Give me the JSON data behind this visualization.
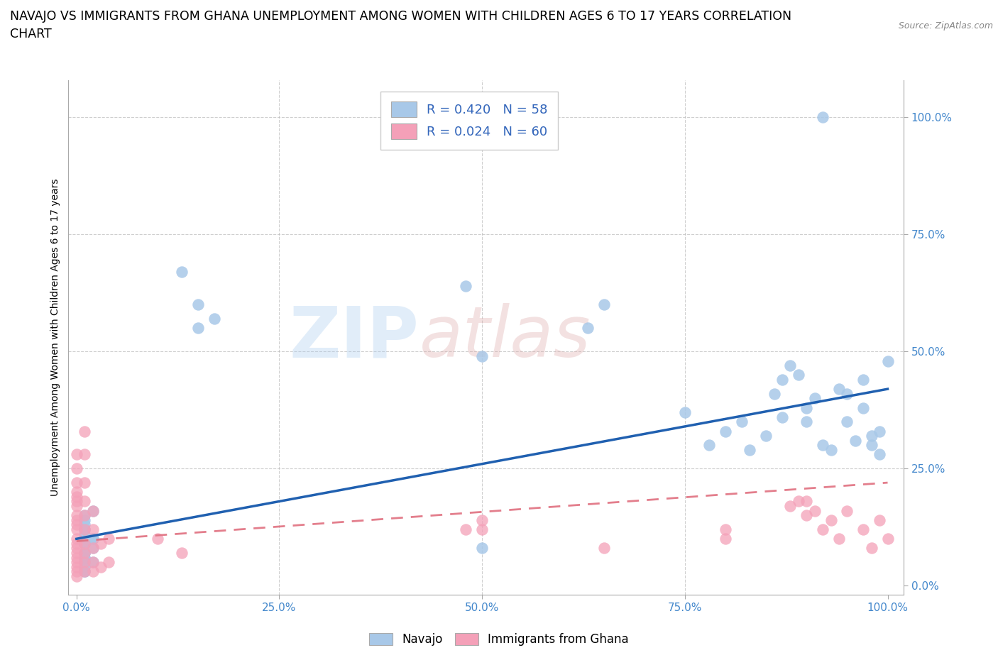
{
  "title_line1": "NAVAJO VS IMMIGRANTS FROM GHANA UNEMPLOYMENT AMONG WOMEN WITH CHILDREN AGES 6 TO 17 YEARS CORRELATION",
  "title_line2": "CHART",
  "source": "Source: ZipAtlas.com",
  "ylabel": "Unemployment Among Women with Children Ages 6 to 17 years",
  "label_navajo": "Navajo",
  "label_ghana": "Immigrants from Ghana",
  "navajo_R": 0.42,
  "navajo_N": 58,
  "ghana_R": 0.024,
  "ghana_N": 60,
  "navajo_color": "#a8c8e8",
  "ghana_color": "#f4a0b8",
  "navajo_line_color": "#2060b0",
  "ghana_line_color": "#e07080",
  "background_color": "#ffffff",
  "grid_color": "#bbbbbb",
  "xticks": [
    0.0,
    0.25,
    0.5,
    0.75,
    1.0
  ],
  "yticks": [
    0.0,
    0.25,
    0.5,
    0.75,
    1.0
  ],
  "xticklabels": [
    "0.0%",
    "25.0%",
    "50.0%",
    "75.0%",
    "100.0%"
  ],
  "yticklabels": [
    "0.0%",
    "25.0%",
    "50.0%",
    "75.0%",
    "100.0%"
  ],
  "navajo_x": [
    0.01,
    0.01,
    0.01,
    0.01,
    0.02,
    0.01,
    0.02,
    0.01,
    0.01,
    0.02,
    0.01,
    0.02,
    0.01,
    0.01,
    0.01,
    0.02,
    0.01,
    0.01,
    0.01,
    0.13,
    0.17,
    0.48,
    0.5,
    0.63,
    0.65,
    0.75,
    0.78,
    0.8,
    0.82,
    0.83,
    0.85,
    0.86,
    0.87,
    0.87,
    0.88,
    0.89,
    0.9,
    0.9,
    0.91,
    0.92,
    0.93,
    0.94,
    0.95,
    0.95,
    0.96,
    0.97,
    0.97,
    0.98,
    0.98,
    0.99,
    0.99,
    1.0,
    0.92,
    0.5,
    0.15,
    0.15,
    0.01,
    0.01
  ],
  "navajo_y": [
    0.07,
    0.12,
    0.09,
    0.15,
    0.1,
    0.06,
    0.08,
    0.04,
    0.03,
    0.05,
    0.13,
    0.16,
    0.11,
    0.07,
    0.14,
    0.1,
    0.09,
    0.12,
    0.06,
    0.67,
    0.57,
    0.64,
    0.49,
    0.55,
    0.6,
    0.37,
    0.3,
    0.33,
    0.35,
    0.29,
    0.32,
    0.41,
    0.36,
    0.44,
    0.47,
    0.45,
    0.35,
    0.38,
    0.4,
    0.3,
    0.29,
    0.42,
    0.41,
    0.35,
    0.31,
    0.38,
    0.44,
    0.3,
    0.32,
    0.28,
    0.33,
    0.48,
    1.0,
    0.08,
    0.6,
    0.55,
    0.05,
    0.03
  ],
  "ghana_x": [
    0.0,
    0.0,
    0.0,
    0.0,
    0.0,
    0.0,
    0.0,
    0.0,
    0.0,
    0.0,
    0.0,
    0.0,
    0.0,
    0.0,
    0.0,
    0.0,
    0.0,
    0.0,
    0.0,
    0.0,
    0.01,
    0.01,
    0.01,
    0.01,
    0.01,
    0.01,
    0.01,
    0.01,
    0.01,
    0.01,
    0.02,
    0.02,
    0.02,
    0.02,
    0.02,
    0.03,
    0.03,
    0.04,
    0.04,
    0.1,
    0.13,
    0.48,
    0.5,
    0.5,
    0.65,
    0.8,
    0.8,
    0.88,
    0.89,
    0.9,
    0.9,
    0.91,
    0.92,
    0.93,
    0.94,
    0.95,
    0.97,
    0.98,
    0.99,
    1.0
  ],
  "ghana_y": [
    0.02,
    0.03,
    0.04,
    0.05,
    0.06,
    0.07,
    0.08,
    0.09,
    0.1,
    0.12,
    0.13,
    0.14,
    0.15,
    0.17,
    0.18,
    0.19,
    0.2,
    0.22,
    0.25,
    0.28,
    0.03,
    0.05,
    0.07,
    0.09,
    0.12,
    0.15,
    0.18,
    0.22,
    0.28,
    0.33,
    0.03,
    0.05,
    0.08,
    0.12,
    0.16,
    0.04,
    0.09,
    0.05,
    0.1,
    0.1,
    0.07,
    0.12,
    0.12,
    0.14,
    0.08,
    0.1,
    0.12,
    0.17,
    0.18,
    0.18,
    0.15,
    0.16,
    0.12,
    0.14,
    0.1,
    0.16,
    0.12,
    0.08,
    0.14,
    0.1
  ],
  "watermark_zip": "ZIP",
  "watermark_atlas": "atlas",
  "title_fontsize": 12.5,
  "legend_fontsize": 13,
  "axis_label_fontsize": 10,
  "tick_fontsize": 11,
  "tick_color": "#4488cc"
}
